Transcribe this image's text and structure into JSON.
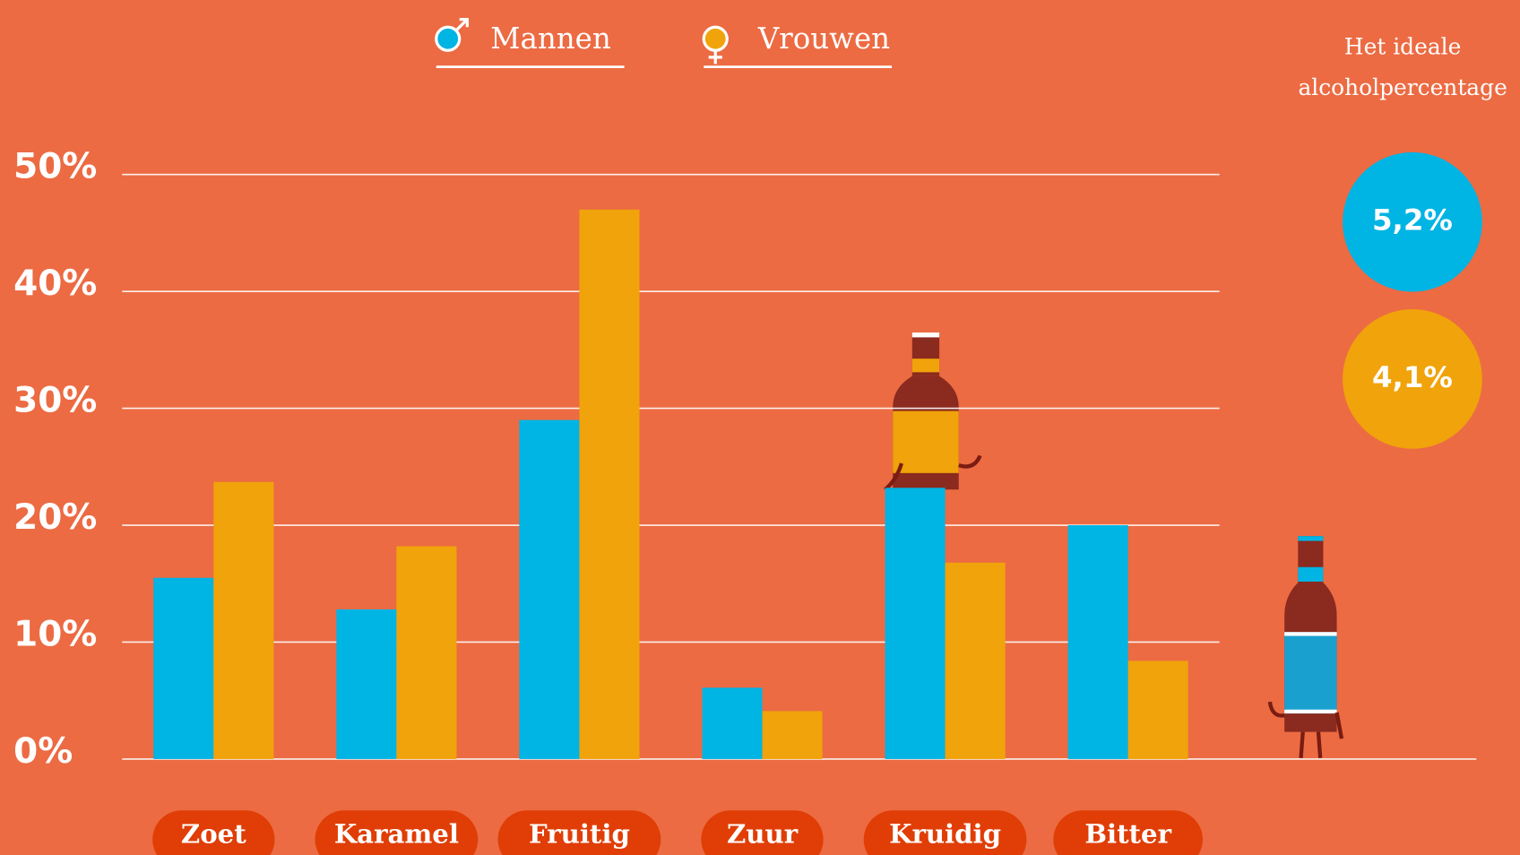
{
  "chart_data": {
    "type": "bar",
    "categories": [
      "Zoet",
      "Karamel",
      "Fruitig",
      "Zuur",
      "Kruidig",
      "Bitter"
    ],
    "series": [
      {
        "name": "Mannen",
        "color": "#00b4e4",
        "values": [
          15.5,
          12.8,
          29.0,
          6.1,
          23.2,
          20.0
        ]
      },
      {
        "name": "Vrouwen",
        "color": "#f0a30a",
        "values": [
          23.7,
          18.2,
          47.0,
          4.1,
          16.8,
          8.4
        ]
      }
    ],
    "ylim": [
      0,
      50
    ],
    "yticks": [
      {
        "value": 0,
        "label": "0%"
      },
      {
        "value": 10,
        "label": "10%"
      },
      {
        "value": 20,
        "label": "20%"
      },
      {
        "value": 30,
        "label": "30%"
      },
      {
        "value": 40,
        "label": "40%"
      },
      {
        "value": 50,
        "label": "50%"
      }
    ],
    "grid": true,
    "legend": "top",
    "ideal": {
      "title": "Het ideale alcoholpercentage",
      "values": [
        5.2,
        4.1
      ],
      "value_labels": [
        "5,2%",
        "4,1%"
      ]
    }
  }
}
